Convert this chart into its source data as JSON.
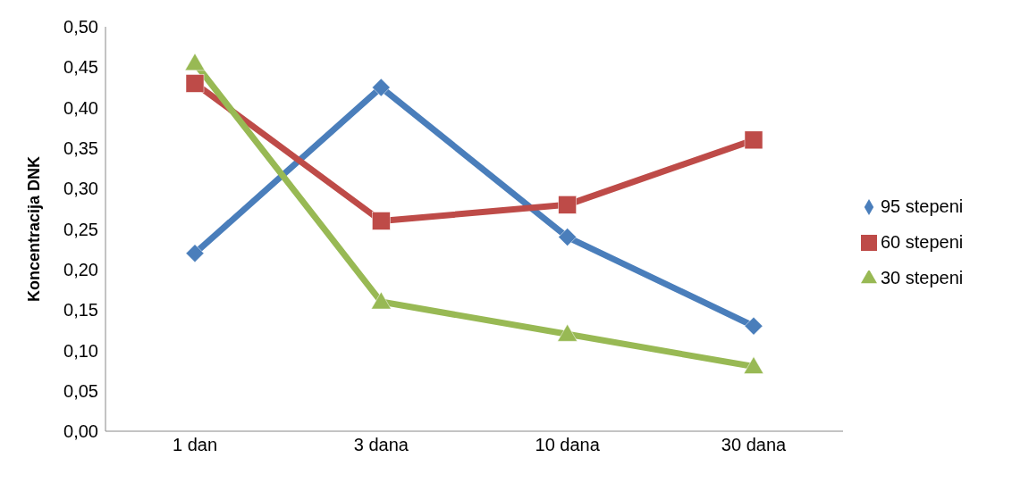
{
  "chart_data": {
    "type": "line",
    "ylabel": "Koncentracija DNK",
    "categories": [
      "1 dan",
      "3 dana",
      "10 dana",
      "30 dana"
    ],
    "series": [
      {
        "name": "95 stepeni",
        "color": "#4a7ebb",
        "marker": "diamond",
        "values": [
          0.22,
          0.425,
          0.24,
          0.13
        ]
      },
      {
        "name": "60 stepeni",
        "color": "#be4b48",
        "marker": "square",
        "values": [
          0.43,
          0.26,
          0.28,
          0.36
        ]
      },
      {
        "name": "30 stepeni",
        "color": "#98b954",
        "marker": "triangle",
        "values": [
          0.455,
          0.16,
          0.12,
          0.08
        ]
      }
    ],
    "ylim": [
      0,
      0.5
    ],
    "yticks": [
      {
        "value": 0,
        "label": "0,00"
      },
      {
        "value": 0.05,
        "label": "0,05"
      },
      {
        "value": 0.1,
        "label": "0,10"
      },
      {
        "value": 0.15,
        "label": "0,15"
      },
      {
        "value": 0.2,
        "label": "0,20"
      },
      {
        "value": 0.25,
        "label": "0,25"
      },
      {
        "value": 0.3,
        "label": "0,30"
      },
      {
        "value": 0.35,
        "label": "0,35"
      },
      {
        "value": 0.4,
        "label": "0,40"
      },
      {
        "value": 0.45,
        "label": "0,45"
      },
      {
        "value": 0.5,
        "label": "0,50"
      }
    ],
    "grid": false,
    "legend": "right",
    "line_style": "solid"
  }
}
